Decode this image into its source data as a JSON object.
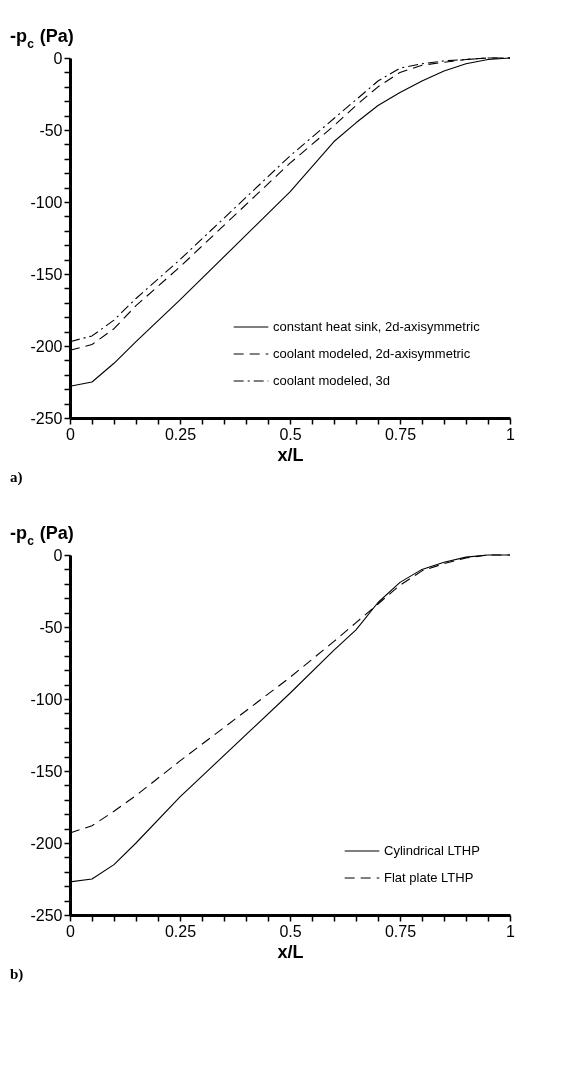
{
  "chart_data": [
    {
      "type": "line",
      "xlabel": "x/L",
      "ylabel": "-p$_{c}$ (Pa)",
      "annotations": [
        "a)"
      ],
      "x": [
        0,
        0.05,
        0.1,
        0.15,
        0.25,
        0.5,
        0.6,
        0.65,
        0.7,
        0.75,
        0.8,
        0.85,
        0.9,
        0.95,
        1
      ],
      "series": [
        {
          "name": "constant heat sink, 2d-axisymmetric",
          "color": "#000000",
          "line_style": "solid",
          "values": [
            -228,
            -225,
            -212,
            -197,
            -168,
            -93,
            -58,
            -45,
            -33,
            -24,
            -16,
            -9,
            -4,
            -1,
            0
          ]
        },
        {
          "name": "coolant modeled, 2d-axisymmetric",
          "color": "#000000",
          "line_style": "dashed",
          "values": [
            -203,
            -199,
            -188,
            -172,
            -145,
            -73,
            -47,
            -33,
            -20,
            -10,
            -5,
            -3,
            -1,
            0,
            0
          ]
        },
        {
          "name": "coolant modeled, 3d",
          "color": "#000000",
          "line_style": "dashdot",
          "values": [
            -197,
            -193,
            -182,
            -167,
            -140,
            -68,
            -42,
            -29,
            -16,
            -7,
            -4,
            -2,
            -1,
            0,
            0
          ]
        }
      ],
      "xlim": [
        0,
        1
      ],
      "ylim": [
        -250,
        0
      ],
      "xticks": [
        0,
        {
          "value": 0.05,
          "label": null
        },
        {
          "value": 0.1,
          "label": null
        },
        {
          "value": 0.15,
          "label": null
        },
        {
          "value": 0.2,
          "label": null
        },
        0.25,
        {
          "value": 0.3,
          "label": null
        },
        {
          "value": 0.35,
          "label": null
        },
        {
          "value": 0.4,
          "label": null
        },
        {
          "value": 0.45,
          "label": null
        },
        0.5,
        {
          "value": 0.55,
          "label": null
        },
        {
          "value": 0.6,
          "label": null
        },
        {
          "value": 0.65,
          "label": null
        },
        {
          "value": 0.7,
          "label": null
        },
        0.75,
        {
          "value": 0.8,
          "label": null
        },
        {
          "value": 0.85,
          "label": null
        },
        {
          "value": 0.9,
          "label": null
        },
        {
          "value": 0.95,
          "label": null
        },
        1
      ],
      "yticks": [
        -250,
        {
          "value": -240,
          "label": null
        },
        {
          "value": -230,
          "label": null
        },
        {
          "value": -220,
          "label": null
        },
        {
          "value": -210,
          "label": null
        },
        -200,
        {
          "value": -190,
          "label": null
        },
        {
          "value": -180,
          "label": null
        },
        {
          "value": -170,
          "label": null
        },
        {
          "value": -160,
          "label": null
        },
        -150,
        {
          "value": -140,
          "label": null
        },
        {
          "value": -130,
          "label": null
        },
        {
          "value": -120,
          "label": null
        },
        {
          "value": -110,
          "label": null
        },
        -100,
        {
          "value": -90,
          "label": null
        },
        {
          "value": -80,
          "label": null
        },
        {
          "value": -70,
          "label": null
        },
        {
          "value": -60,
          "label": null
        },
        -50,
        {
          "value": -40,
          "label": null
        },
        {
          "value": -30,
          "label": null
        },
        {
          "value": -20,
          "label": null
        },
        {
          "value": -10,
          "label": null
        },
        0
      ],
      "legend": "bottom right",
      "grid": false,
      "marker": "none"
    },
    {
      "type": "line",
      "xlabel": "x/L",
      "ylabel": "-p$_{c}$ (Pa)",
      "annotations": [
        "b)"
      ],
      "x": [
        0,
        0.05,
        0.1,
        0.15,
        0.25,
        0.5,
        0.6,
        0.65,
        0.7,
        0.75,
        0.8,
        0.85,
        0.9,
        0.95,
        1
      ],
      "series": [
        {
          "name": "Cylindrical LTHP",
          "color": "#000000",
          "line_style": "solid",
          "values": [
            -227,
            -225,
            -215,
            -200,
            -168,
            -96,
            -66,
            -52,
            -33,
            -19,
            -10,
            -5,
            -1.5,
            0,
            0
          ]
        },
        {
          "name": "Flat plate LTHP",
          "color": "#000000",
          "line_style": "dashed",
          "values": [
            -193,
            -188,
            -178,
            -167,
            -143,
            -85,
            -60,
            -47,
            -34,
            -21,
            -11,
            -6,
            -2,
            0,
            0
          ]
        }
      ],
      "xlim": [
        0,
        1
      ],
      "ylim": [
        -250,
        0
      ],
      "xticks": [
        0,
        {
          "value": 0.05,
          "label": null
        },
        {
          "value": 0.1,
          "label": null
        },
        {
          "value": 0.15,
          "label": null
        },
        {
          "value": 0.2,
          "label": null
        },
        0.25,
        {
          "value": 0.3,
          "label": null
        },
        {
          "value": 0.35,
          "label": null
        },
        {
          "value": 0.4,
          "label": null
        },
        {
          "value": 0.45,
          "label": null
        },
        0.5,
        {
          "value": 0.55,
          "label": null
        },
        {
          "value": 0.6,
          "label": null
        },
        {
          "value": 0.65,
          "label": null
        },
        {
          "value": 0.7,
          "label": null
        },
        0.75,
        {
          "value": 0.8,
          "label": null
        },
        {
          "value": 0.85,
          "label": null
        },
        {
          "value": 0.9,
          "label": null
        },
        {
          "value": 0.95,
          "label": null
        },
        1
      ],
      "yticks": [
        -250,
        {
          "value": -240,
          "label": null
        },
        {
          "value": -230,
          "label": null
        },
        {
          "value": -220,
          "label": null
        },
        {
          "value": -210,
          "label": null
        },
        -200,
        {
          "value": -190,
          "label": null
        },
        {
          "value": -180,
          "label": null
        },
        {
          "value": -170,
          "label": null
        },
        {
          "value": -160,
          "label": null
        },
        -150,
        {
          "value": -140,
          "label": null
        },
        {
          "value": -130,
          "label": null
        },
        {
          "value": -120,
          "label": null
        },
        {
          "value": -110,
          "label": null
        },
        -100,
        {
          "value": -90,
          "label": null
        },
        {
          "value": -80,
          "label": null
        },
        {
          "value": -70,
          "label": null
        },
        {
          "value": -60,
          "label": null
        },
        -50,
        {
          "value": -40,
          "label": null
        },
        {
          "value": -30,
          "label": null
        },
        {
          "value": -20,
          "label": null
        },
        {
          "value": -10,
          "label": null
        },
        0
      ],
      "legend": "bottom right",
      "grid": false,
      "marker": "none"
    }
  ]
}
